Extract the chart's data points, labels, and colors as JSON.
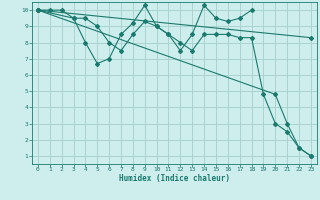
{
  "xlabel": "Humidex (Indice chaleur)",
  "background_color": "#ceeeed",
  "grid_color": "#aad4d0",
  "line_color": "#1a7a6e",
  "xlim": [
    -0.5,
    23.5
  ],
  "ylim": [
    0.5,
    10.5
  ],
  "xticks": [
    0,
    1,
    2,
    3,
    4,
    5,
    6,
    7,
    8,
    9,
    10,
    11,
    12,
    13,
    14,
    15,
    16,
    17,
    18,
    19,
    20,
    21,
    22,
    23
  ],
  "yticks": [
    1,
    2,
    3,
    4,
    5,
    6,
    7,
    8,
    9,
    10
  ],
  "series": [
    {
      "x": [
        0,
        1,
        2,
        3,
        4,
        5,
        6,
        7,
        8,
        9,
        10,
        11,
        12,
        13,
        14,
        15,
        16,
        17,
        18
      ],
      "y": [
        10,
        10,
        10,
        9.5,
        8,
        6.7,
        7,
        8.5,
        9.2,
        10.3,
        9,
        8.5,
        7.5,
        8.5,
        10.3,
        9.5,
        9.3,
        9.5,
        10
      ]
    },
    {
      "x": [
        0,
        3,
        4,
        5,
        6,
        7,
        8,
        9,
        10,
        11,
        12,
        13,
        14,
        15,
        16,
        17,
        18,
        19,
        20,
        21,
        22,
        23
      ],
      "y": [
        10,
        9.5,
        9.5,
        9,
        8,
        7.5,
        8.5,
        9.3,
        9,
        8.5,
        8,
        7.5,
        8.5,
        8.5,
        8.5,
        8.3,
        8.3,
        4.8,
        3,
        2.5,
        1.5,
        1
      ]
    },
    {
      "x": [
        0,
        23
      ],
      "y": [
        10,
        8.3
      ]
    },
    {
      "x": [
        0,
        20,
        21,
        22,
        23
      ],
      "y": [
        10,
        4.8,
        3,
        1.5,
        1
      ]
    }
  ]
}
